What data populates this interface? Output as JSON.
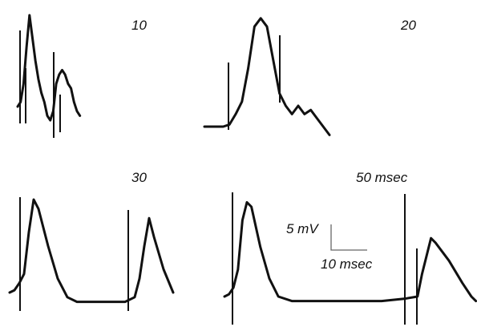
{
  "chart_data": {
    "type": "line",
    "title": "",
    "panels": [
      {
        "label": "10",
        "x": [
          0,
          1,
          2,
          3,
          4,
          5,
          6,
          7,
          8,
          9,
          10,
          11,
          12,
          13,
          14,
          15,
          16,
          17,
          18,
          19,
          20,
          21
        ],
        "y": [
          0,
          1,
          5,
          13,
          20,
          15,
          10,
          6,
          3,
          1,
          -2,
          -3,
          -1,
          5,
          7,
          8,
          7,
          5,
          4,
          1,
          -1,
          -2
        ]
      },
      {
        "label": "20",
        "x": [
          0,
          3,
          6,
          8,
          10,
          12,
          14,
          16,
          18,
          20,
          22,
          24,
          26,
          28,
          30,
          32,
          34,
          36,
          38,
          40
        ],
        "y": [
          0,
          0,
          0,
          0.5,
          3,
          6,
          14,
          24,
          26,
          24,
          16,
          8,
          5,
          3,
          5,
          3,
          4,
          2,
          0,
          -2
        ]
      },
      {
        "label": "30",
        "x": [
          0,
          1,
          2,
          3,
          4,
          5,
          6,
          8,
          10,
          12,
          14,
          16,
          18,
          20,
          22,
          24,
          26,
          27,
          28,
          29,
          30,
          32,
          34
        ],
        "y": [
          0,
          0.5,
          2,
          4,
          13,
          20,
          18,
          10,
          3,
          -1,
          -2,
          -2,
          -2,
          -2,
          -2,
          -2,
          -1,
          3,
          10,
          16,
          12,
          5,
          0
        ]
      },
      {
        "label": "50 msec",
        "x": [
          0,
          1,
          2,
          3,
          4,
          5,
          6,
          8,
          10,
          12,
          15,
          20,
          25,
          30,
          35,
          40,
          43,
          44,
          45,
          46,
          47,
          50,
          53,
          55,
          56
        ],
        "y": [
          0,
          0.5,
          2,
          6,
          17,
          21,
          20,
          11,
          4,
          0,
          -1,
          -1,
          -1,
          -1,
          -1,
          -0.5,
          0,
          5,
          9,
          13,
          12,
          8,
          3,
          0,
          -1
        ]
      }
    ],
    "scale_bar": {
      "y_label": "5 mV",
      "x_label": "10 msec"
    }
  }
}
